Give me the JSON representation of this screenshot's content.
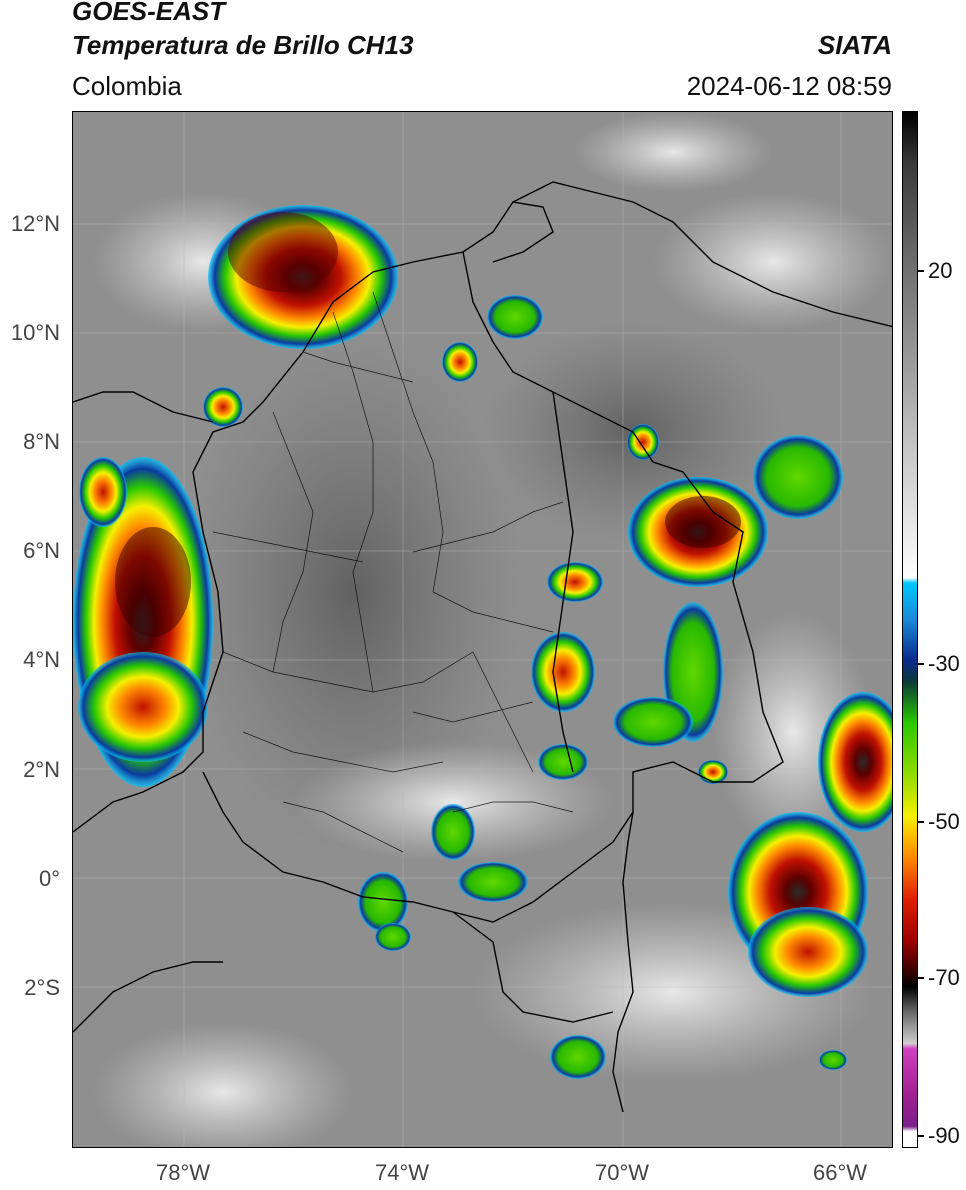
{
  "header": {
    "satellite": "GOES-EAST",
    "product": "Temperatura de Brillo CH13",
    "organization": "SIATA",
    "region": "Colombia",
    "timestamp": "2024-06-12 08:59"
  },
  "map": {
    "lat_labels": [
      "12°N",
      "10°N",
      "8°N",
      "6°N",
      "4°N",
      "2°N",
      "0°",
      "2°S"
    ],
    "lon_labels": [
      "78°W",
      "74°W",
      "70°W",
      "66°W"
    ]
  },
  "colorbar": {
    "labels": [
      "20",
      "-30",
      "-50",
      "-70",
      "-90"
    ],
    "colors": {
      "warm_gray_top": "#1a1a1a",
      "light_gray": "#f5f5f5",
      "cyan": "#00c8ff",
      "blue": "#0a2a8a",
      "green": "#28c800",
      "yellow": "#f5f000",
      "orange": "#ff8a00",
      "red": "#d01000",
      "dark_red": "#5a0000",
      "black": "#000000",
      "magenta": "#d040c0",
      "purple": "#7a1e8a"
    }
  }
}
